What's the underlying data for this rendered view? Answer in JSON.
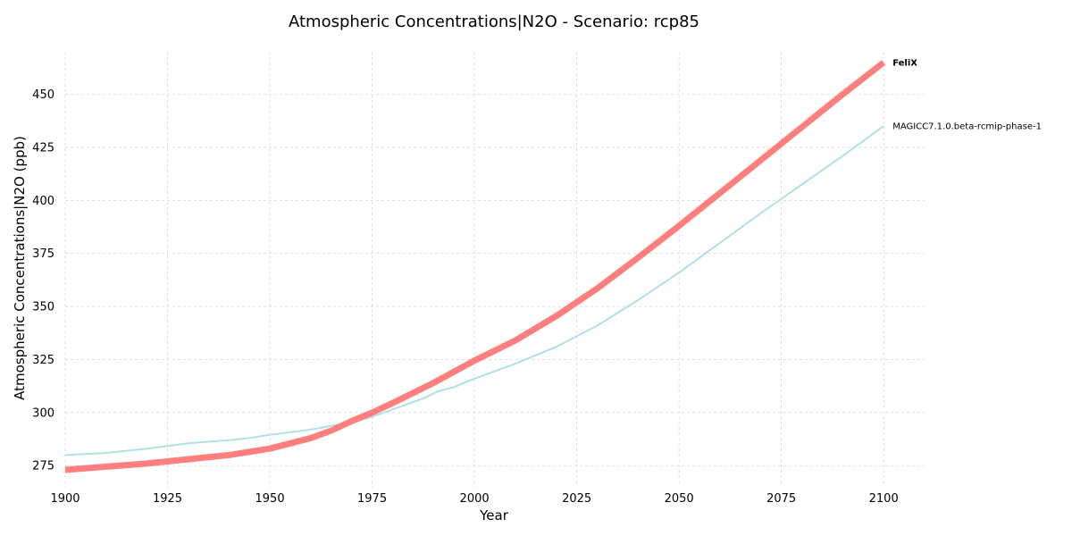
{
  "chart_data": {
    "type": "line",
    "title": "Atmospheric Concentrations|N2O - Scenario: rcp85",
    "xlabel": "Year",
    "ylabel": "Atmospheric Concentrations|N2O (ppb)",
    "xlim": [
      1900,
      2110
    ],
    "ylim": [
      265,
      470
    ],
    "xticks": [
      1900,
      1925,
      1950,
      1975,
      2000,
      2025,
      2050,
      2075,
      2100
    ],
    "yticks": [
      275,
      300,
      325,
      350,
      375,
      400,
      425,
      450
    ],
    "grid": true,
    "legend": "inline-right",
    "series": [
      {
        "name": "MAGICC7.1.0.beta-rcmip-phase-1",
        "color": "#b0e0e6",
        "x": [
          1900,
          1910,
          1920,
          1930,
          1940,
          1945,
          1950,
          1960,
          1970,
          1975,
          1980,
          1985,
          1988,
          1991,
          1995,
          2000,
          2010,
          2020,
          2030,
          2040,
          2050,
          2060,
          2070,
          2080,
          2090,
          2100
        ],
        "y": [
          280,
          281,
          283,
          285.5,
          287,
          288,
          289.5,
          292,
          295.5,
          298,
          301.5,
          305,
          307,
          310,
          312,
          316,
          323,
          331,
          341,
          353,
          366,
          380,
          394,
          407.5,
          421,
          435
        ]
      },
      {
        "name": "FeliX",
        "color": "#ff7f7f",
        "x": [
          1900,
          1910,
          1920,
          1930,
          1940,
          1945,
          1950,
          1955,
          1960,
          1965,
          1970,
          1975,
          1980,
          1990,
          2000,
          2010,
          2020,
          2030,
          2040,
          2050,
          2060,
          2070,
          2080,
          2090,
          2100
        ],
        "y": [
          273,
          274.5,
          276,
          278,
          280,
          281.5,
          283,
          285.5,
          288,
          291.5,
          296,
          300,
          304.5,
          314,
          324.5,
          334,
          345.5,
          358.5,
          373,
          388,
          403.5,
          419,
          434.5,
          450,
          465
        ]
      }
    ]
  }
}
